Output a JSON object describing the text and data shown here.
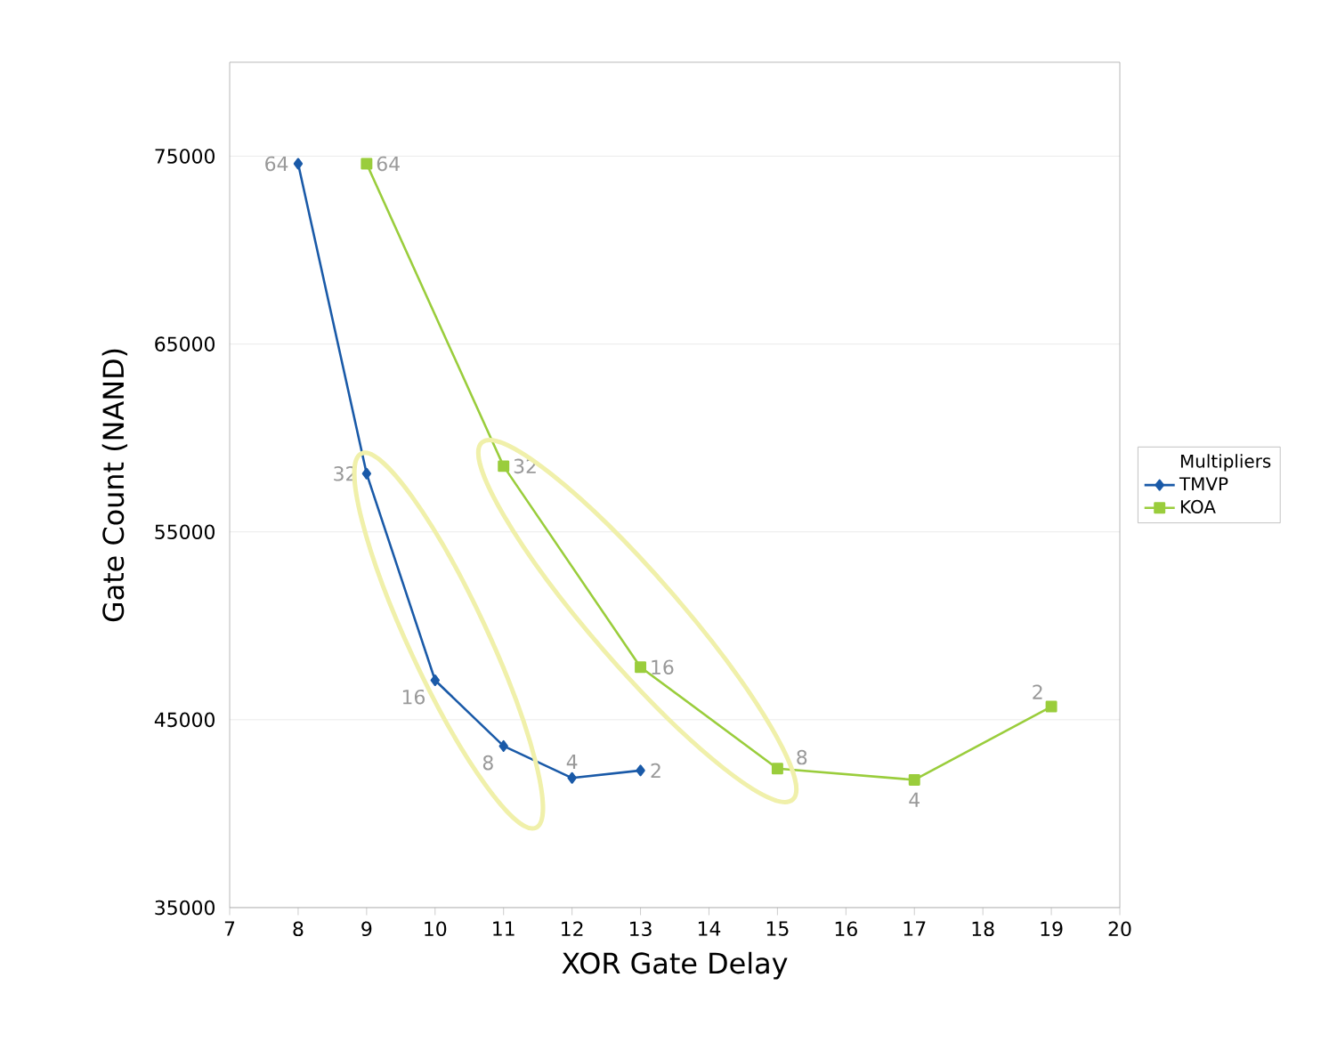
{
  "chart_data": {
    "type": "line",
    "xlabel": "XOR Gate Delay",
    "ylabel": "Gate Count (NAND)",
    "legend_title": "Multipliers",
    "xlim": [
      7,
      20
    ],
    "xticks": [
      7,
      8,
      9,
      10,
      11,
      12,
      13,
      14,
      15,
      16,
      17,
      18,
      19,
      20
    ],
    "ylim": [
      35000,
      80000
    ],
    "yticks": [
      35000,
      45000,
      55000,
      65000,
      75000
    ],
    "grid": "y",
    "legend": "right",
    "series": [
      {
        "name": "TMVP",
        "color": "#1a5aa8",
        "marker": "diamond",
        "x": [
          8,
          9,
          10,
          11,
          12,
          13
        ],
        "values": [
          74600,
          58100,
          47100,
          43600,
          41900,
          42300
        ]
      },
      {
        "name": "KOA",
        "color": "#9acd3c",
        "marker": "square",
        "x": [
          9,
          11,
          13,
          15,
          17,
          19
        ],
        "values": [
          74600,
          58500,
          47800,
          42400,
          41800,
          45700
        ]
      }
    ],
    "annotations": [
      {
        "text": "64",
        "x": 8,
        "y": 74600
      },
      {
        "text": "32",
        "x": 9,
        "y": 58100
      },
      {
        "text": "16",
        "x": 10,
        "y": 47100
      },
      {
        "text": "8",
        "x": 11,
        "y": 43600
      },
      {
        "text": "4",
        "x": 12,
        "y": 41900
      },
      {
        "text": "2",
        "x": 13,
        "y": 42300
      },
      {
        "text": "64",
        "x": 9,
        "y": 74600
      },
      {
        "text": "32",
        "x": 11,
        "y": 58500
      },
      {
        "text": "16",
        "x": 13,
        "y": 47800
      },
      {
        "text": "8",
        "x": 15,
        "y": 42400
      },
      {
        "text": "4",
        "x": 17,
        "y": 41800
      },
      {
        "text": "2",
        "x": 19,
        "y": 45700
      }
    ]
  }
}
